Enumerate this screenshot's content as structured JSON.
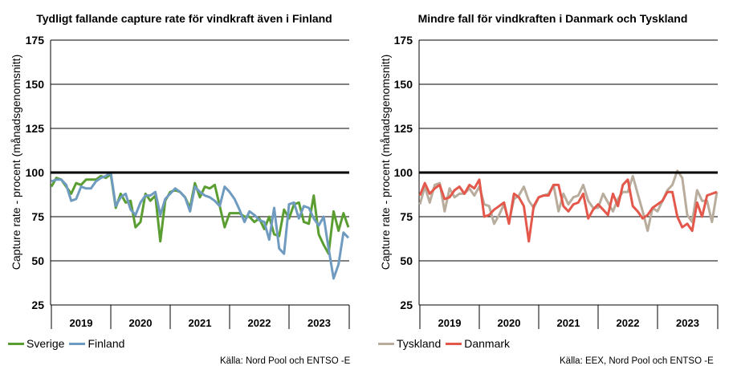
{
  "chart_data": [
    {
      "type": "line",
      "title": "Tydligt fallande capture rate för vindkraft även i Finland",
      "ylabel": "Capture rate - procent (månadsgenomsnitt)",
      "xlabel": "",
      "ylim": [
        25,
        175
      ],
      "yticks": [
        25,
        50,
        75,
        100,
        125,
        150,
        175
      ],
      "reference_line": 100,
      "year_labels": [
        "2019",
        "2020",
        "2021",
        "2022",
        "2023"
      ],
      "start": "2019-01",
      "legend_position": "bottom-left",
      "grid": true,
      "source": "Källa: Nord Pool och ENTSO -E",
      "series": [
        {
          "name": "Sverige",
          "color": "#5a9e32",
          "values": [
            92,
            97,
            96,
            92,
            88,
            94,
            93,
            96,
            96,
            96,
            98,
            97,
            99,
            80,
            88,
            83,
            84,
            69,
            72,
            88,
            84,
            87,
            61,
            84,
            89,
            90,
            89,
            86,
            80,
            94,
            86,
            92,
            91,
            93,
            81,
            69,
            77,
            77,
            77,
            75,
            75,
            72,
            74,
            68,
            75,
            65,
            64,
            79,
            74,
            82,
            83,
            72,
            71,
            87,
            65,
            59,
            54,
            78,
            67,
            77,
            69
          ]
        },
        {
          "name": "Finland",
          "color": "#6f9bc0",
          "values": [
            95,
            96,
            96,
            93,
            84,
            85,
            92,
            91,
            91,
            95,
            97,
            98,
            100,
            81,
            86,
            88,
            79,
            76,
            83,
            87,
            87,
            89,
            76,
            85,
            88,
            91,
            89,
            86,
            78,
            92,
            89,
            87,
            86,
            84,
            81,
            92,
            89,
            85,
            79,
            72,
            78,
            76,
            73,
            72,
            62,
            80,
            57,
            54,
            82,
            83,
            74,
            81,
            80,
            74,
            70,
            75,
            57,
            40,
            48,
            66,
            63
          ]
        }
      ]
    },
    {
      "type": "line",
      "title": "Mindre fall för vindkraften i Danmark och Tyskland",
      "ylabel": "Capture rate - procent (månadsgenomsnitt)",
      "xlabel": "",
      "ylim": [
        25,
        175
      ],
      "yticks": [
        25,
        50,
        75,
        100,
        125,
        150,
        175
      ],
      "reference_line": 100,
      "year_labels": [
        "2019",
        "2020",
        "2021",
        "2022",
        "2023"
      ],
      "start": "2019-01",
      "legend_position": "bottom-left",
      "grid": true,
      "source": "Källa: EEX, Nord Pool och ENTSO -E",
      "series": [
        {
          "name": "Tyskland",
          "color": "#b8ac9c",
          "values": [
            82,
            92,
            83,
            93,
            94,
            78,
            91,
            86,
            88,
            88,
            91,
            87,
            92,
            82,
            81,
            71,
            76,
            82,
            72,
            85,
            87,
            92,
            84,
            80,
            86,
            87,
            88,
            93,
            78,
            88,
            82,
            86,
            87,
            93,
            84,
            80,
            80,
            88,
            83,
            78,
            85,
            89,
            89,
            98,
            88,
            78,
            67,
            80,
            78,
            84,
            90,
            93,
            101,
            97,
            76,
            72,
            90,
            84,
            84,
            72,
            89
          ]
        },
        {
          "name": "Danmark",
          "color": "#e4574b",
          "values": [
            87,
            94,
            88,
            91,
            93,
            85,
            86,
            90,
            92,
            88,
            93,
            91,
            96,
            75,
            76,
            79,
            81,
            83,
            71,
            88,
            86,
            81,
            61,
            81,
            86,
            87,
            87,
            93,
            93,
            81,
            78,
            82,
            83,
            88,
            74,
            79,
            82,
            79,
            76,
            88,
            81,
            93,
            96,
            81,
            78,
            74,
            76,
            80,
            82,
            84,
            89,
            89,
            75,
            69,
            71,
            67,
            83,
            75,
            87,
            88,
            89
          ]
        }
      ]
    }
  ]
}
